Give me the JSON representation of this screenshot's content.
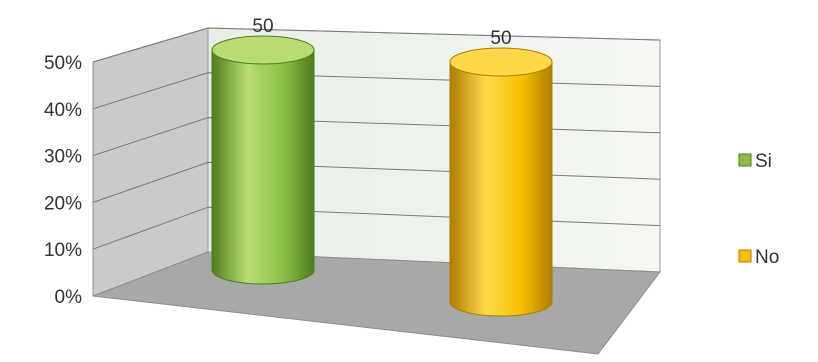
{
  "chart_data": {
    "type": "bar",
    "style": "3d-cylinder",
    "categories": [
      "Si",
      "No"
    ],
    "values": [
      50,
      50
    ],
    "data_labels": [
      "50",
      "50"
    ],
    "ylim": [
      0,
      50
    ],
    "yticks": [
      "0%",
      "10%",
      "20%",
      "30%",
      "40%",
      "50%"
    ],
    "grid": true,
    "legend": {
      "position": "right",
      "entries": [
        {
          "label": "Si",
          "color": "#8cbf45"
        },
        {
          "label": "No",
          "color": "#f7c000"
        }
      ]
    },
    "colors": {
      "Si": {
        "light": "#b9dc72",
        "mid": "#8cbf45",
        "dark": "#4f7d1e"
      },
      "No": {
        "light": "#ffd94a",
        "mid": "#f7c000",
        "dark": "#b07d00"
      },
      "back_wall": "#eef3ec",
      "side_wall": "#c9cbca",
      "floor": "#a6a9a6",
      "gridline": "#7a7a7a"
    }
  }
}
